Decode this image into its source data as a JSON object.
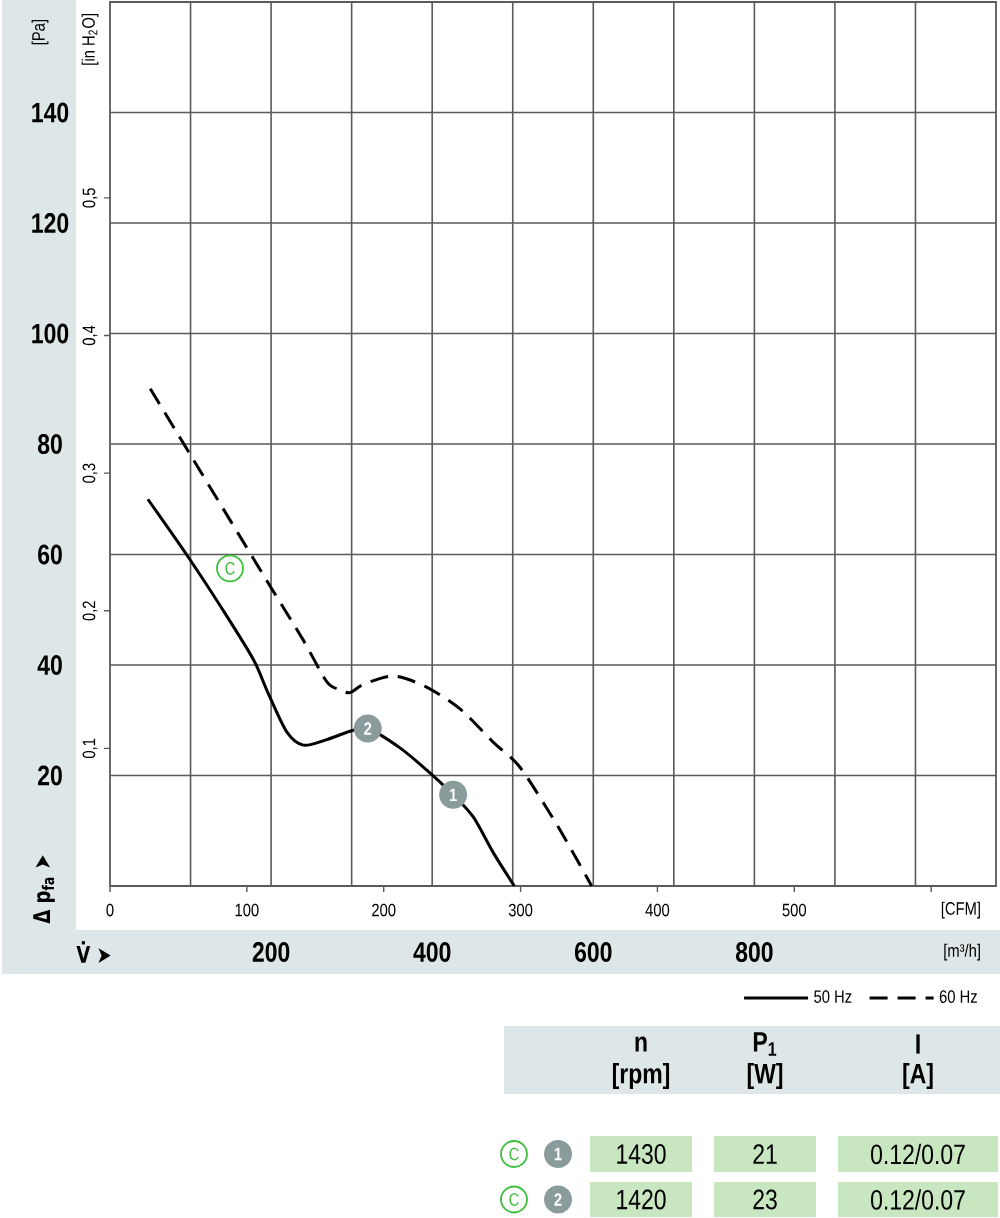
{
  "chart_data": {
    "type": "line",
    "xlabel": "[m³/h]",
    "ylabel": "[Pa]",
    "x2label": "[CFM]",
    "y2label": "[in H$_{2}$O]",
    "xlim": [
      0,
      1100
    ],
    "xticks": [
      {
        "value": 100,
        "label": null
      },
      200,
      {
        "value": 300,
        "label": null
      },
      400,
      {
        "value": 500,
        "label": null
      },
      600,
      {
        "value": 700,
        "label": null
      },
      800,
      {
        "value": 900,
        "label": null
      },
      {
        "value": 1000,
        "label": null
      }
    ],
    "ylim": [
      0,
      160
    ],
    "yticks": [
      20,
      40,
      60,
      80,
      100,
      120,
      140
    ],
    "x2lim": [
      0,
      647.4
    ],
    "x2ticks": [
      0,
      100,
      200,
      300,
      400,
      500,
      {
        "value": 600,
        "label": null
      }
    ],
    "y2lim": [
      0,
      0.6423
    ],
    "y2ticks": [
      {
        "value": 0.1,
        "label": "0,1"
      },
      {
        "value": 0.2,
        "label": "0,2"
      },
      {
        "value": 0.3,
        "label": "0,3"
      },
      {
        "value": 0.4,
        "label": "0,4"
      },
      {
        "value": 0.5,
        "label": "0,5"
      }
    ],
    "grid": true,
    "legend": "bottom right",
    "series": [
      {
        "name": "50 Hz",
        "color": "#000000",
        "line_style": "solid",
        "x": [
          47,
          95,
          140,
          178,
          196,
          219,
          240,
          269,
          298,
          320,
          360,
          393,
          426,
          451,
          476,
          502
        ],
        "values": [
          70,
          60,
          50,
          41,
          35,
          28,
          25.5,
          26.5,
          28,
          28.5,
          25,
          21,
          16.5,
          12.5,
          6,
          0
        ]
      },
      {
        "name": "60 Hz",
        "color": "#000000",
        "line_style": "dashed",
        "x": [
          50,
          100,
          150,
          200,
          240,
          269,
          286,
          298,
          315,
          352,
          393,
          435,
          476,
          509,
          551,
          575,
          598
        ],
        "values": [
          90,
          78,
          66,
          54,
          44.5,
          37,
          35.5,
          35,
          36.5,
          38,
          36,
          32,
          26,
          21.5,
          12,
          6,
          0
        ]
      }
    ],
    "annotations": [
      "Δ p$_{fa}$ ➤",
      "V̇ ➤",
      {
        "text": "C",
        "x": 149,
        "y": 57.5
      },
      {
        "text": "2",
        "x": 320,
        "y": 28.5
      },
      {
        "text": "1",
        "x": 426,
        "y": 16.5
      },
      "n",
      "P$_{1}$",
      "I",
      "[rpm]",
      "[W]",
      "[A]",
      "C",
      "1",
      "1430",
      "21",
      "0.12/0.07",
      "C",
      "2",
      "1420",
      "23",
      "0.12/0.07"
    ]
  }
}
